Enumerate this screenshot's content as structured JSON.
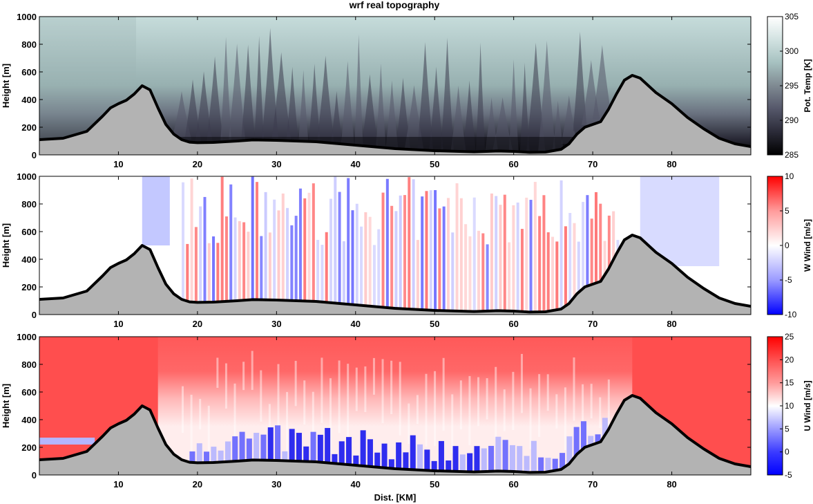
{
  "figure": {
    "title": "wrf real topography"
  },
  "chart_data": [
    {
      "type": "heatmap",
      "panel": "pot-temp",
      "ylabel": "Height [m]",
      "xlim": [
        0,
        90
      ],
      "ylim": [
        0,
        1000
      ],
      "xticks": [
        10,
        20,
        30,
        40,
        50,
        60,
        70,
        80
      ],
      "yticks": [
        0,
        200,
        400,
        600,
        800,
        1000
      ],
      "colorbar": {
        "label": "Pot. Temp [K]",
        "ticks": [
          285,
          290,
          295,
          300,
          305
        ],
        "range": [
          285,
          305
        ],
        "colors": [
          "#000000",
          "#2b2b38",
          "#55576a",
          "#7f8a92",
          "#a6c1c0",
          "#d2e2e1",
          "#ffffff"
        ]
      }
    },
    {
      "type": "heatmap",
      "panel": "w-wind",
      "ylabel": "Height [m]",
      "xlim": [
        0,
        90
      ],
      "ylim": [
        0,
        1000
      ],
      "xticks": [
        10,
        20,
        30,
        40,
        50,
        60,
        70,
        80
      ],
      "yticks": [
        0,
        200,
        400,
        600,
        800,
        1000
      ],
      "colorbar": {
        "label": "W Wind [m/s]",
        "ticks": [
          10,
          5,
          0,
          -5,
          -10
        ],
        "range": [
          -10,
          10
        ],
        "colors": [
          "#0000ff",
          "#9b9bff",
          "#ffffff",
          "#ff9b9b",
          "#ff0000"
        ]
      }
    },
    {
      "type": "heatmap",
      "panel": "u-wind",
      "ylabel": "Height [m]",
      "xlabel": "Dist. [KM]",
      "xlim": [
        0,
        90
      ],
      "ylim": [
        0,
        1000
      ],
      "xticks": [
        10,
        20,
        30,
        40,
        50,
        60,
        70,
        80
      ],
      "yticks": [
        0,
        200,
        400,
        600,
        800,
        1000
      ],
      "colorbar": {
        "label": "U Wind [m/s]",
        "ticks": [
          25,
          20,
          15,
          10,
          5,
          0,
          -5
        ],
        "range": [
          -5,
          25
        ],
        "colors": [
          "#0000ff",
          "#3b3bff",
          "#9b9bff",
          "#ffffff",
          "#ff9b9b",
          "#ff5050",
          "#ff0000"
        ]
      }
    }
  ],
  "topography": {
    "x": [
      0,
      3,
      6,
      8,
      9,
      10,
      11,
      12,
      13,
      14,
      15,
      16,
      17,
      18,
      19,
      20,
      22,
      25,
      27,
      30,
      35,
      40,
      45,
      50,
      55,
      58,
      60,
      62,
      64,
      66,
      67,
      68,
      69,
      70,
      71,
      72,
      73,
      74,
      75,
      76,
      78,
      80,
      82,
      84,
      86,
      88,
      90
    ],
    "height": [
      110,
      120,
      170,
      280,
      340,
      370,
      395,
      440,
      500,
      470,
      340,
      220,
      150,
      110,
      92,
      88,
      90,
      100,
      108,
      105,
      95,
      70,
      45,
      30,
      22,
      28,
      25,
      18,
      20,
      40,
      80,
      150,
      200,
      220,
      240,
      330,
      440,
      540,
      575,
      555,
      450,
      370,
      270,
      190,
      120,
      80,
      60
    ]
  }
}
